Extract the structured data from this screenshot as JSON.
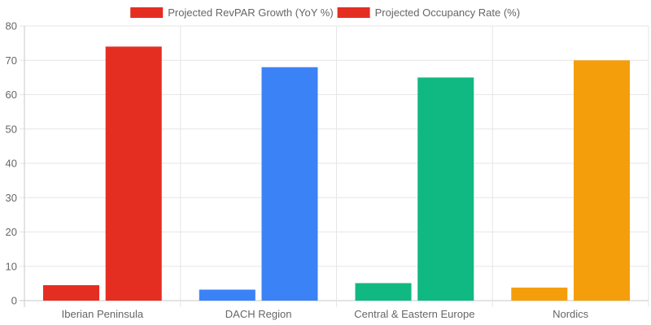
{
  "chart_data": {
    "type": "bar",
    "categories": [
      "Iberian Peninsula",
      "DACH Region",
      "Central & Eastern Europe",
      "Nordics"
    ],
    "series": [
      {
        "name": "Projected RevPAR Growth (YoY %)",
        "values": [
          4.5,
          3.2,
          5.1,
          3.8
        ]
      },
      {
        "name": "Projected Occupancy Rate (%)",
        "values": [
          74,
          68,
          65,
          70
        ]
      }
    ],
    "category_colors": [
      "#e52e22",
      "#3b82f6",
      "#10b981",
      "#f59e0b"
    ],
    "legend_color": "#e52e22",
    "ylim": [
      0,
      80
    ],
    "yticks": [
      0,
      10,
      20,
      30,
      40,
      50,
      60,
      70,
      80
    ],
    "grid": true,
    "legend_position": "top-center"
  }
}
